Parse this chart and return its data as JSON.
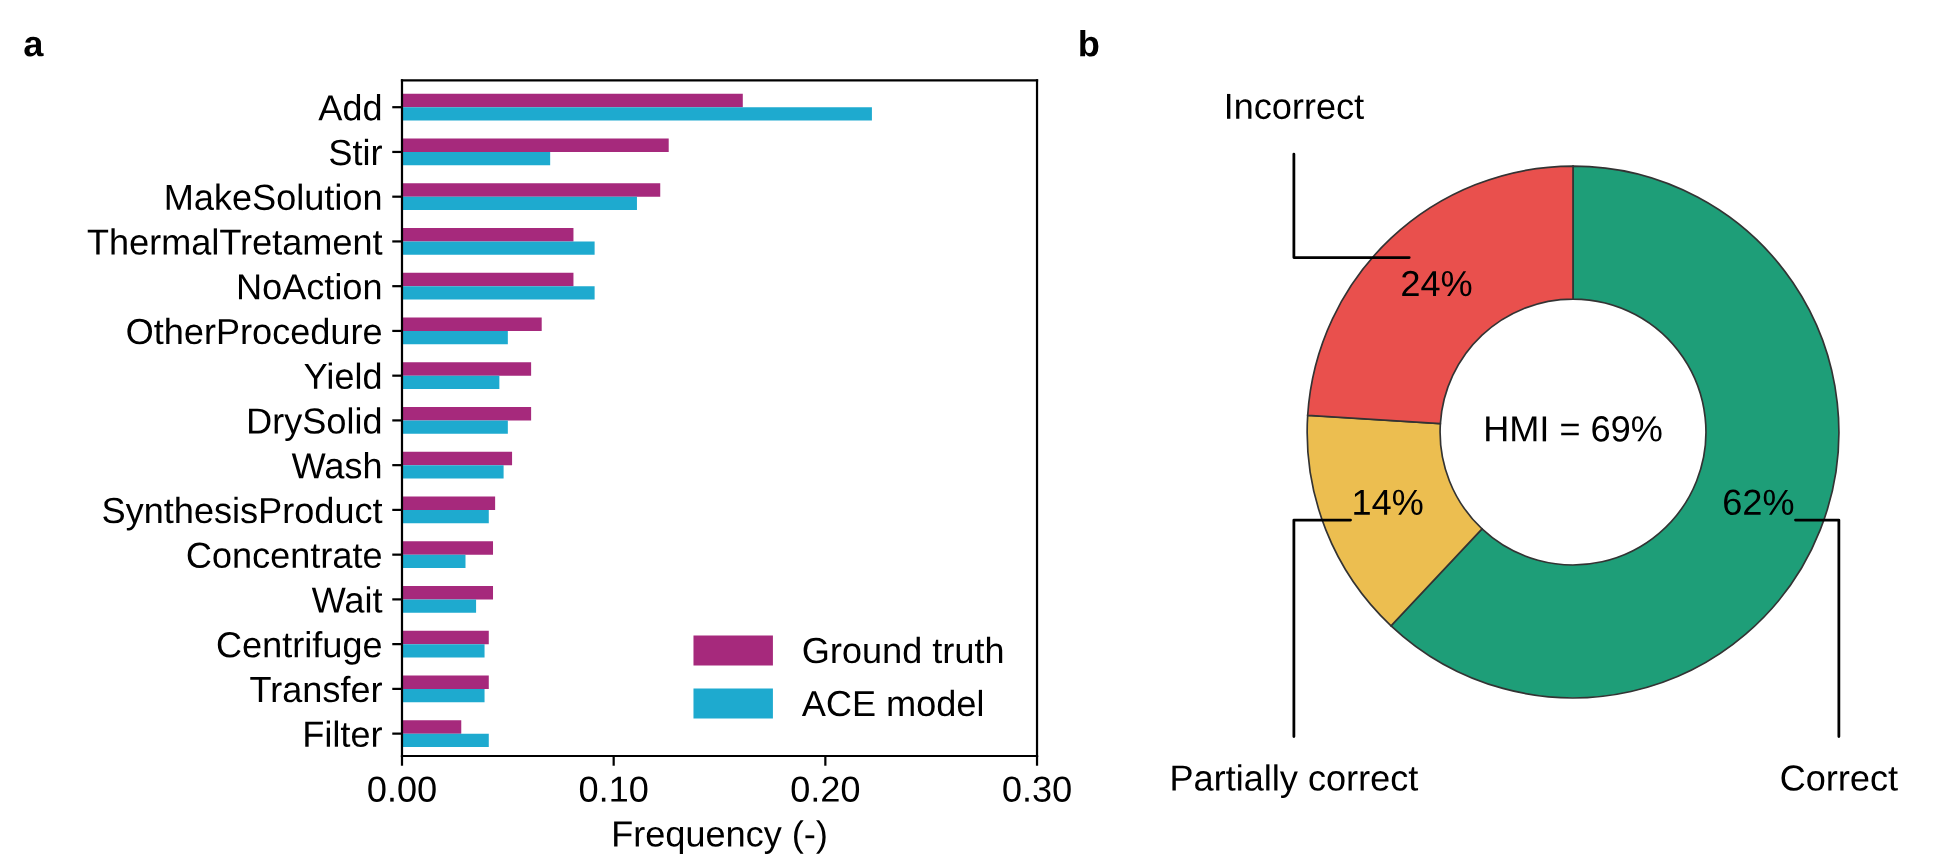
{
  "chart_data": [
    {
      "type": "bar",
      "orientation": "horizontal",
      "xlabel": "Frequency (-)",
      "annotations": [
        "a"
      ],
      "categories": [
        "Add",
        "Stir",
        "MakeSolution",
        "ThermalTretament",
        "NoAction",
        "OtherProcedure",
        "Yield",
        "DrySolid",
        "Wash",
        "SynthesisProduct",
        "Concentrate",
        "Wait",
        "Centrifuge",
        "Transfer",
        "Filter"
      ],
      "series": [
        {
          "name": "Ground truth",
          "color": "#a6297c",
          "values": [
            0.161,
            0.126,
            0.122,
            0.081,
            0.081,
            0.066,
            0.061,
            0.061,
            0.052,
            0.044,
            0.043,
            0.043,
            0.041,
            0.041,
            0.028
          ]
        },
        {
          "name": "ACE model",
          "color": "#1eaacf",
          "values": [
            0.222,
            0.07,
            0.111,
            0.091,
            0.091,
            0.05,
            0.046,
            0.05,
            0.048,
            0.041,
            0.03,
            0.035,
            0.039,
            0.039,
            0.041
          ]
        }
      ],
      "xlim": [
        0,
        0.3
      ],
      "xticks": [
        {
          "value": 0,
          "label": "0.00"
        },
        {
          "value": 0.1,
          "label": "0.10"
        },
        {
          "value": 0.2,
          "label": "0.20"
        },
        {
          "value": 0.3,
          "label": "0.30"
        }
      ],
      "legend": "bottom right",
      "grid": false
    },
    {
      "type": "donut",
      "categories": [
        "Correct",
        "Partially correct",
        "Incorrect"
      ],
      "values": [
        62,
        14,
        24
      ],
      "colors": [
        "#1e9e78",
        "#ecbe50",
        "#e9504d"
      ],
      "value_labels": [
        "62%",
        "14%",
        "24%"
      ],
      "annotations": [
        "b",
        "HMI = 69%"
      ]
    }
  ]
}
